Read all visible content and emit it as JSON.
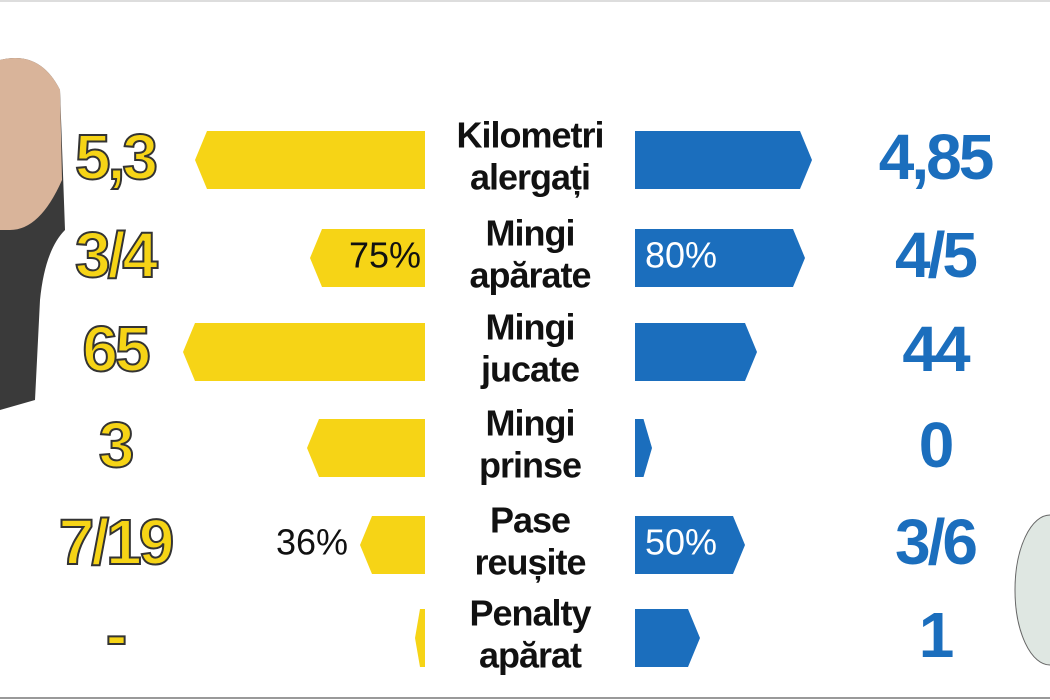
{
  "rows": [
    {
      "label": [
        "Kilometri",
        "alergați"
      ],
      "left": {
        "value": "5,3"
      },
      "right": {
        "value": "4,85"
      }
    },
    {
      "label": [
        "Mingi",
        "apărate"
      ],
      "left": {
        "value": "3/4",
        "percent": "75%"
      },
      "right": {
        "value": "4/5",
        "percent": "80%"
      }
    },
    {
      "label": [
        "Mingi",
        "jucate"
      ],
      "left": {
        "value": "65"
      },
      "right": {
        "value": "44"
      }
    },
    {
      "label": [
        "Mingi",
        "prinse"
      ],
      "left": {
        "value": "3"
      },
      "right": {
        "value": "0"
      }
    },
    {
      "label": [
        "Pase",
        "reușite"
      ],
      "left": {
        "value": "7/19",
        "percent": "36%"
      },
      "right": {
        "value": "3/6",
        "percent": "50%"
      }
    },
    {
      "label": [
        "Penalty",
        "apărat"
      ],
      "left": {
        "value": "-"
      },
      "right": {
        "value": "1"
      }
    }
  ]
}
